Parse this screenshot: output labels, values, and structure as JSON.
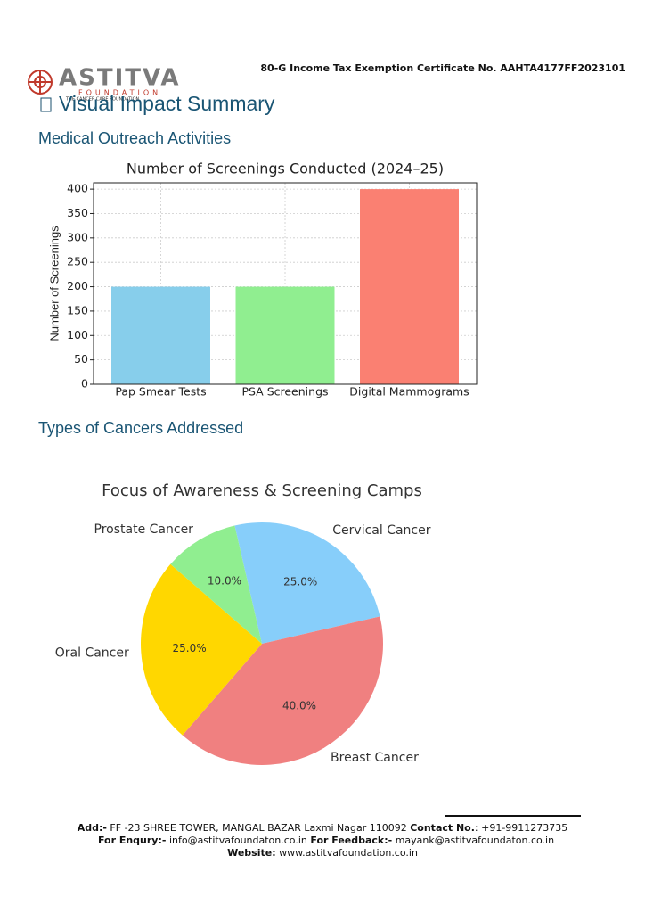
{
  "header": {
    "logo": "ASTITVA",
    "logo_sub": "FOUNDATION",
    "logo_tag": "THE CANCER CARE FOUNDATION",
    "certificate": "80-G Income Tax Exemption Certificate No. AAHTA4177FF2023101",
    "title": "Visual Impact Summary"
  },
  "sections": [
    "Medical Outreach Activities",
    "Types of Cancers Addressed"
  ],
  "chart_data": [
    {
      "type": "bar",
      "title": "Number of Screenings Conducted (2024–25)",
      "ylabel": "Number of Screenings",
      "categories": [
        "Pap Smear Tests",
        "PSA Screenings",
        "Digital Mammograms"
      ],
      "values": [
        200,
        200,
        400
      ],
      "colors": [
        "#87ceeb",
        "#90ee90",
        "#fa8072"
      ],
      "ylim": [
        0,
        413
      ],
      "yticks": [
        0,
        50,
        100,
        150,
        200,
        250,
        300,
        350,
        400
      ],
      "grid": true
    },
    {
      "type": "pie",
      "title": "Focus of Awareness & Screening Camps",
      "labels": [
        "Cervical Cancer",
        "Breast Cancer",
        "Oral Cancer",
        "Prostate Cancer"
      ],
      "values": [
        25,
        40,
        25,
        10
      ],
      "value_labels": [
        "25.0%",
        "40.0%",
        "25.0%",
        "10.0%"
      ],
      "colors": [
        "#87cefa",
        "#f08080",
        "#ffd700",
        "#90ee90"
      ]
    }
  ],
  "footer": {
    "add_label": "Add:-",
    "address": "FF -23 SHREE TOWER, MANGAL BAZAR Laxmi Nagar 110092",
    "contact_label": "Contact No.",
    "contact": ": +91-9911273735",
    "enquiry_label": "For Enqury:-",
    "enquiry": "info@astitvafoundaton.co.in",
    "feedback_label": "For Feedback:-",
    "feedback": "mayank@astitvafoundaton.co.in",
    "website_label": "Website:",
    "website": "www.astitvafoundation.co.in"
  }
}
